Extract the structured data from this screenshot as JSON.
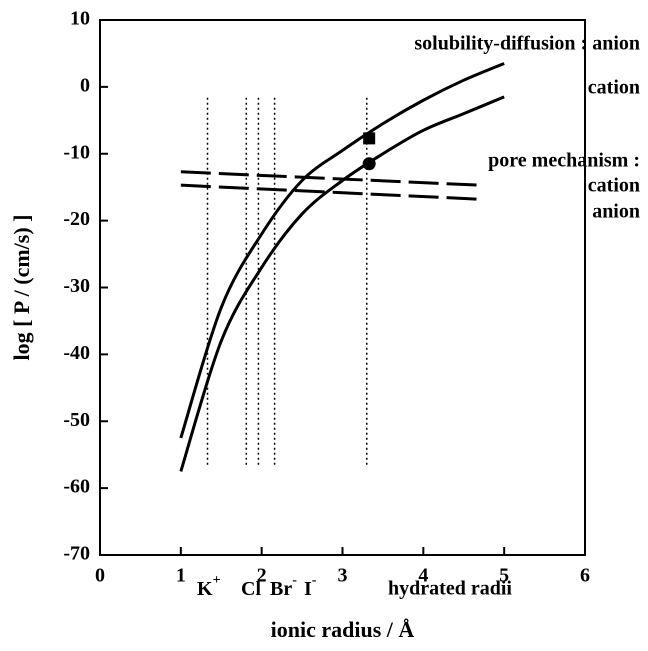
{
  "chart_data": {
    "type": "line",
    "xlabel": "ionic radius / Å",
    "ylabel": "log [ P / (cm/s) ]",
    "xlim": [
      0,
      6
    ],
    "ylim": [
      -70,
      10
    ],
    "xticks": [
      0,
      1,
      2,
      3,
      4,
      5,
      6
    ],
    "yticks": [
      -70,
      -60,
      -50,
      -40,
      -30,
      -20,
      -10,
      0,
      10
    ],
    "series": [
      {
        "label": "solubility-diffusion : anion",
        "color": "#000",
        "style": "solid",
        "x": [
          1,
          1.5,
          2,
          2.5,
          3,
          3.5,
          4,
          4.5,
          5
        ],
        "values": [
          -52.5,
          -33,
          -22,
          -14,
          -9.5,
          -5.5,
          -2,
          1,
          3.5
        ]
      },
      {
        "label": "cation",
        "color": "#000",
        "style": "solid",
        "x": [
          1,
          1.5,
          2,
          2.5,
          3,
          3.5,
          4,
          4.5,
          5
        ],
        "values": [
          -57.5,
          -38,
          -27,
          -19,
          -14,
          -10,
          -6.5,
          -4,
          -1.5
        ]
      },
      {
        "label": "cation",
        "color": "#000",
        "style": "dashed",
        "x": [
          1,
          4.7
        ],
        "values": [
          -12.7,
          -14.7
        ]
      },
      {
        "label": "anion",
        "color": "#000",
        "style": "dashed",
        "x": [
          1,
          4.7
        ],
        "values": [
          -14.7,
          -16.8
        ]
      }
    ],
    "pore_title": "pore mechanism :",
    "points": [
      {
        "x": 3.33,
        "y": -7.7,
        "marker": "square"
      },
      {
        "x": 3.33,
        "y": -11.5,
        "marker": "circle"
      }
    ],
    "reference_lines": {
      "x": [
        1.33,
        1.81,
        1.96,
        2.16,
        3.3
      ],
      "ylim": [
        -56.5,
        -1.5
      ]
    },
    "ion_labels": [
      {
        "text": "K",
        "sup": "+"
      },
      {
        "text": "Cl",
        "sup": "-"
      },
      {
        "text": "Br",
        "sup": "-"
      },
      {
        "text": "I",
        "sup": "-"
      }
    ],
    "hydrated_label": "hydrated radii"
  }
}
